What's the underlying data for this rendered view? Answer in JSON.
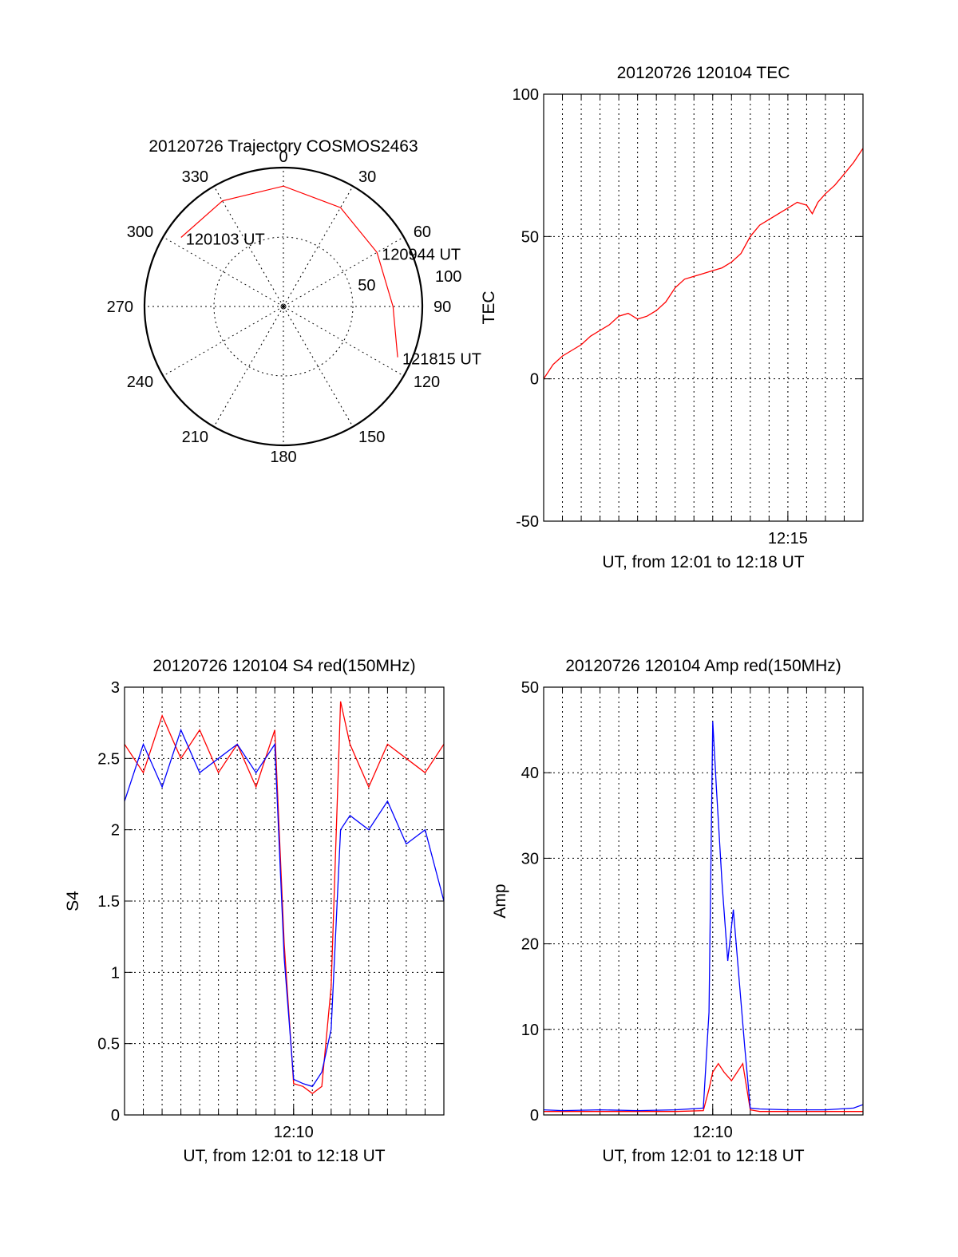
{
  "chart_data": [
    {
      "type": "polar",
      "title": "20120726 Trajectory COSMOS2463",
      "angle_labels": [
        "0",
        "30",
        "60",
        "90",
        "120",
        "150",
        "180",
        "210",
        "240",
        "270",
        "300",
        "330"
      ],
      "radial_labels": [
        "50",
        "100"
      ],
      "radial_range": [
        0,
        100
      ],
      "grid": true,
      "series": [
        {
          "color": "#ff0000",
          "points": [
            {
              "az": 304,
              "el": 10
            },
            {
              "az": 330,
              "el": 11
            },
            {
              "az": 0,
              "el": 12
            },
            {
              "az": 30,
              "el": 16
            },
            {
              "az": 60,
              "el": 20
            },
            {
              "az": 90,
              "el": 19
            },
            {
              "az": 114,
              "el": 9
            }
          ]
        }
      ],
      "annotations": [
        {
          "text": "120103 UT",
          "az": 304,
          "el": 10
        },
        {
          "text": "120944 UT",
          "az": 60,
          "el": 20
        },
        {
          "text": "121815 UT",
          "az": 114,
          "el": 9
        }
      ]
    },
    {
      "type": "line",
      "title": "20120726 120104 TEC",
      "xlabel": "UT, from 12:01 to 12:18 UT",
      "ylabel": "TEC",
      "x_ticks": [
        {
          "t": 14,
          "label": "12:15"
        }
      ],
      "xlim": [
        1,
        18
      ],
      "yticks": [
        "-50",
        "0",
        "50",
        "100"
      ],
      "ylim": [
        -50,
        100
      ],
      "grid": true,
      "series": [
        {
          "color": "#ff0000",
          "x": [
            1,
            1.5,
            2,
            2.5,
            3,
            3.5,
            4,
            4.5,
            5,
            5.5,
            6,
            6.5,
            7,
            7.5,
            8,
            8.5,
            9,
            9.5,
            10,
            10.5,
            11,
            11.5,
            12,
            12.5,
            13,
            13.5,
            14,
            14.5,
            15,
            15.3,
            15.6,
            16,
            16.5,
            17,
            17.5,
            18
          ],
          "y": [
            0,
            5,
            8,
            10,
            12,
            15,
            17,
            19,
            22,
            23,
            21,
            22,
            24,
            27,
            32,
            35,
            36,
            37,
            38,
            39,
            41,
            44,
            50,
            54,
            56,
            58,
            60,
            62,
            61,
            58,
            62,
            65,
            68,
            72,
            76,
            81
          ]
        }
      ]
    },
    {
      "type": "line",
      "title": "20120726 120104 S4 red(150MHz)",
      "xlabel": "UT, from 12:01 to 12:18 UT",
      "ylabel": "S4",
      "x_ticks": [
        {
          "t": 10,
          "label": "12:10"
        }
      ],
      "xlim": [
        1,
        18
      ],
      "yticks": [
        "0",
        "0.5",
        "1",
        "1.5",
        "2",
        "2.5",
        "3"
      ],
      "ylim": [
        0,
        3
      ],
      "grid": true,
      "series": [
        {
          "color": "#ff0000",
          "x": [
            1,
            2,
            3,
            4,
            5,
            6,
            7,
            8,
            9,
            9.5,
            10,
            10.5,
            11,
            11.5,
            12,
            12.5,
            13,
            14,
            15,
            16,
            17,
            18
          ],
          "y": [
            2.6,
            2.4,
            2.8,
            2.5,
            2.7,
            2.4,
            2.6,
            2.3,
            2.7,
            1.2,
            0.22,
            0.2,
            0.15,
            0.2,
            0.9,
            2.9,
            2.6,
            2.3,
            2.6,
            2.5,
            2.4,
            2.6
          ]
        },
        {
          "color": "#0000ff",
          "x": [
            1,
            2,
            3,
            4,
            5,
            6,
            7,
            8,
            9,
            9.5,
            10,
            10.5,
            11,
            11.5,
            12,
            12.5,
            13,
            14,
            15,
            16,
            17,
            18
          ],
          "y": [
            2.2,
            2.6,
            2.3,
            2.7,
            2.4,
            2.5,
            2.6,
            2.4,
            2.6,
            1.1,
            0.25,
            0.22,
            0.2,
            0.3,
            0.6,
            2.0,
            2.1,
            2.0,
            2.2,
            1.9,
            2.0,
            1.5
          ]
        }
      ]
    },
    {
      "type": "line",
      "title": "20120726 120104 Amp red(150MHz)",
      "xlabel": "UT, from 12:01 to 12:18 UT",
      "ylabel": "Amp",
      "x_ticks": [
        {
          "t": 10,
          "label": "12:10"
        }
      ],
      "xlim": [
        1,
        18
      ],
      "yticks": [
        "0",
        "10",
        "20",
        "30",
        "40",
        "50"
      ],
      "ylim": [
        0,
        50
      ],
      "grid": true,
      "series": [
        {
          "color": "#ff0000",
          "x": [
            1,
            2,
            4,
            6,
            8,
            9.5,
            9.8,
            10,
            10.3,
            10.6,
            11,
            11.3,
            11.6,
            12,
            12.5,
            14,
            16,
            18
          ],
          "y": [
            0.4,
            0.4,
            0.4,
            0.4,
            0.4,
            0.5,
            3,
            5,
            6,
            5,
            4,
            5,
            6,
            0.6,
            0.4,
            0.4,
            0.4,
            0.4
          ]
        },
        {
          "color": "#0000ff",
          "x": [
            1,
            2,
            4,
            6,
            8,
            9.5,
            9.8,
            10,
            10.2,
            10.5,
            10.8,
            11.1,
            11.4,
            11.7,
            12,
            12.5,
            14,
            16,
            17.5,
            18
          ],
          "y": [
            0.6,
            0.5,
            0.6,
            0.5,
            0.6,
            0.8,
            12,
            46,
            38,
            27,
            18,
            24,
            16,
            8,
            0.8,
            0.7,
            0.6,
            0.6,
            0.8,
            1.2
          ]
        }
      ]
    }
  ]
}
